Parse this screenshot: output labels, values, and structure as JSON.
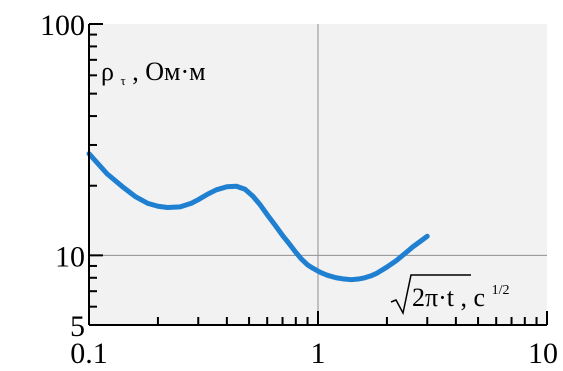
{
  "colors": {
    "plot_background": "#F2F2F2",
    "page_background": "#FFFFFF",
    "series_line": "#1F7FD1",
    "grid": "#909090",
    "axis": "#000000"
  },
  "chart_data": {
    "type": "line",
    "xscale": "log",
    "yscale": "log",
    "xlim": [
      0.1,
      10
    ],
    "ylim": [
      5,
      100
    ],
    "x_ticks": [
      {
        "value": 0.1,
        "label": "0.1"
      },
      {
        "value": 1,
        "label": "1"
      },
      {
        "value": 10,
        "label": "10"
      }
    ],
    "y_ticks": [
      {
        "value": 5,
        "label": "5"
      },
      {
        "value": 10,
        "label": "10"
      },
      {
        "value": 100,
        "label": "100"
      }
    ],
    "grid": {
      "x": [
        1
      ],
      "y": [
        10
      ]
    },
    "ylabel": {
      "symbol": "ρ",
      "subscript": "τ",
      "unit": ", Ом·м"
    },
    "xlabel": {
      "radicand": "2π·t",
      "unit": ", c",
      "unit_superscript": "1/2"
    },
    "series": [
      {
        "x": [
          0.1,
          0.12,
          0.14,
          0.16,
          0.18,
          0.2,
          0.22,
          0.25,
          0.28,
          0.3,
          0.33,
          0.36,
          0.4,
          0.44,
          0.48,
          0.52,
          0.56,
          0.6,
          0.65,
          0.7,
          0.75,
          0.8,
          0.85,
          0.9,
          0.95,
          1.0,
          1.05,
          1.1,
          1.2,
          1.3,
          1.4,
          1.5,
          1.6,
          1.7,
          1.8,
          2.0,
          2.2,
          2.4,
          2.6,
          2.8,
          3.0
        ],
        "y": [
          27.5,
          22.5,
          19.8,
          17.9,
          16.8,
          16.3,
          16.1,
          16.2,
          16.8,
          17.4,
          18.4,
          19.2,
          19.8,
          19.9,
          19.3,
          18.0,
          16.5,
          15.0,
          13.5,
          12.2,
          11.2,
          10.3,
          9.6,
          9.1,
          8.8,
          8.55,
          8.35,
          8.2,
          8.0,
          7.9,
          7.85,
          7.9,
          8.0,
          8.15,
          8.35,
          8.9,
          9.5,
          10.2,
          10.9,
          11.5,
          12.1
        ]
      }
    ]
  }
}
